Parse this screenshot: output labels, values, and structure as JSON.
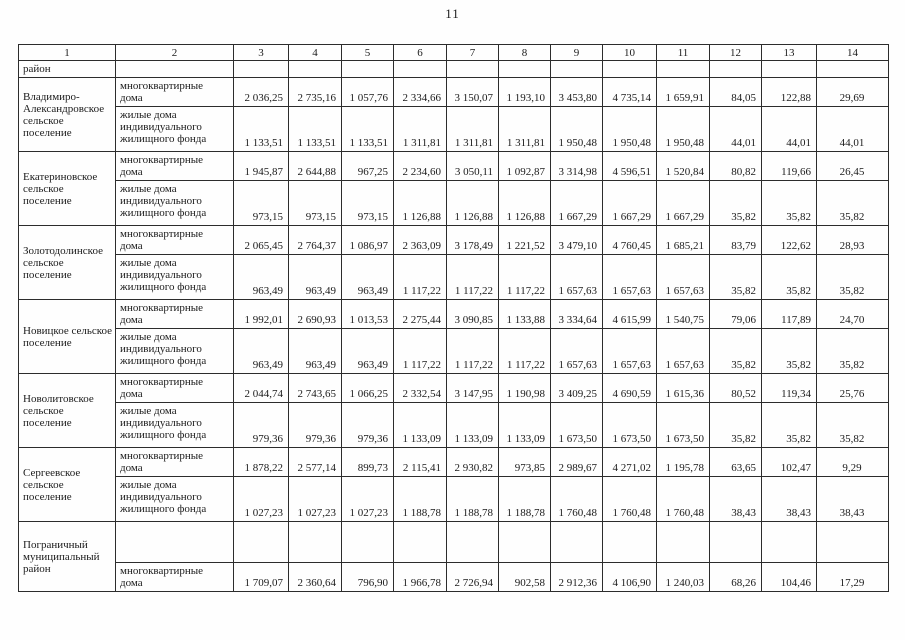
{
  "page": {
    "number": "11"
  },
  "table": {
    "column_numbers": [
      "1",
      "2",
      "3",
      "4",
      "5",
      "6",
      "7",
      "8",
      "9",
      "10",
      "11",
      "12",
      "13",
      "14"
    ],
    "housing_types": {
      "mkd": "многоквартирные дома",
      "individual": "жилые дома индивидуального жилищного фонда"
    },
    "rows": [
      {
        "type": "continuation",
        "name": "район"
      },
      {
        "type": "settlement",
        "name": "Владимиро-Александровское сельское поселение",
        "mkd": [
          "2 036,25",
          "2 735,16",
          "1 057,76",
          "2 334,66",
          "3 150,07",
          "1 193,10",
          "3 453,80",
          "4 735,14",
          "1 659,91",
          "84,05",
          "122,88",
          "29,69"
        ],
        "individual": [
          "1 133,51",
          "1 133,51",
          "1 133,51",
          "1 311,81",
          "1 311,81",
          "1 311,81",
          "1 950,48",
          "1 950,48",
          "1 950,48",
          "44,01",
          "44,01",
          "44,01"
        ]
      },
      {
        "type": "settlement",
        "name": "Екатериновское сельское поселение",
        "mkd": [
          "1 945,87",
          "2 644,88",
          "967,25",
          "2 234,60",
          "3 050,11",
          "1 092,87",
          "3 314,98",
          "4 596,51",
          "1 520,84",
          "80,82",
          "119,66",
          "26,45"
        ],
        "individual": [
          "973,15",
          "973,15",
          "973,15",
          "1 126,88",
          "1 126,88",
          "1 126,88",
          "1 667,29",
          "1 667,29",
          "1 667,29",
          "35,82",
          "35,82",
          "35,82"
        ]
      },
      {
        "type": "settlement",
        "name": "Золотодолинское сельское поселение",
        "mkd": [
          "2 065,45",
          "2 764,37",
          "1 086,97",
          "2 363,09",
          "3 178,49",
          "1 221,52",
          "3 479,10",
          "4 760,45",
          "1 685,21",
          "83,79",
          "122,62",
          "28,93"
        ],
        "individual": [
          "963,49",
          "963,49",
          "963,49",
          "1 117,22",
          "1 117,22",
          "1 117,22",
          "1 657,63",
          "1 657,63",
          "1 657,63",
          "35,82",
          "35,82",
          "35,82"
        ]
      },
      {
        "type": "settlement",
        "name": "Новицкое сельское поселение",
        "mkd": [
          "1 992,01",
          "2 690,93",
          "1 013,53",
          "2 275,44",
          "3 090,85",
          "1 133,88",
          "3 334,64",
          "4 615,99",
          "1 540,75",
          "79,06",
          "117,89",
          "24,70"
        ],
        "individual": [
          "963,49",
          "963,49",
          "963,49",
          "1 117,22",
          "1 117,22",
          "1 117,22",
          "1 657,63",
          "1 657,63",
          "1 657,63",
          "35,82",
          "35,82",
          "35,82"
        ]
      },
      {
        "type": "settlement",
        "name": "Новолитовское сельское поселение",
        "mkd": [
          "2 044,74",
          "2 743,65",
          "1 066,25",
          "2 332,54",
          "3 147,95",
          "1 190,98",
          "3 409,25",
          "4 690,59",
          "1 615,36",
          "80,52",
          "119,34",
          "25,76"
        ],
        "individual": [
          "979,36",
          "979,36",
          "979,36",
          "1 133,09",
          "1 133,09",
          "1 133,09",
          "1 673,50",
          "1 673,50",
          "1 673,50",
          "35,82",
          "35,82",
          "35,82"
        ]
      },
      {
        "type": "settlement",
        "name": "Сергеевское сельское поселение",
        "mkd": [
          "1 878,22",
          "2 577,14",
          "899,73",
          "2 115,41",
          "2 930,82",
          "973,85",
          "2 989,67",
          "4 271,02",
          "1 195,78",
          "63,65",
          "102,47",
          "9,29"
        ],
        "individual": [
          "1 027,23",
          "1 027,23",
          "1 027,23",
          "1 188,78",
          "1 188,78",
          "1 188,78",
          "1 760,48",
          "1 760,48",
          "1 760,48",
          "38,43",
          "38,43",
          "38,43"
        ]
      },
      {
        "type": "tail",
        "name": "Пограничный муниципальный район",
        "mkd": [
          "1 709,07",
          "2 360,64",
          "796,90",
          "1 966,78",
          "2 726,94",
          "902,58",
          "2 912,36",
          "4 106,90",
          "1 240,03",
          "68,26",
          "104,46",
          "17,29"
        ]
      }
    ]
  }
}
